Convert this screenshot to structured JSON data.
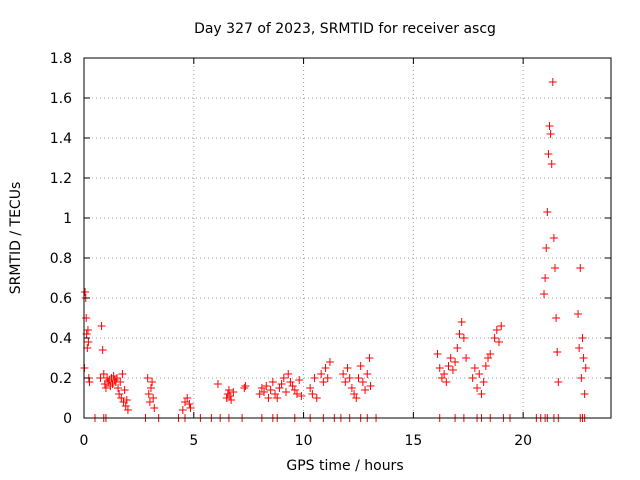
{
  "chart_data": {
    "type": "scatter",
    "title": "Day 327 of 2023, SRMTID for receiver ascg",
    "xlabel": "GPS time / hours",
    "ylabel": "SRMTID / TECUs",
    "xlim": [
      0,
      24
    ],
    "ylim": [
      0,
      1.8
    ],
    "x_ticks": [
      0,
      5,
      10,
      15,
      20
    ],
    "y_ticks": [
      0,
      0.2,
      0.4,
      0.6,
      0.8,
      1.0,
      1.2,
      1.4,
      1.6,
      1.8
    ],
    "x_tick_labels": [
      "0",
      "5",
      "10",
      "15",
      "20"
    ],
    "y_tick_labels": [
      "0",
      "0.2",
      "0.4",
      "0.6",
      "0.8",
      "1",
      "1.2",
      "1.4",
      "1.6",
      "1.8"
    ],
    "grid": true,
    "marker": "+",
    "color": "#ff0000",
    "series": [
      {
        "name": "SRMTID",
        "x": [
          0.02,
          0.05,
          0.08,
          0.1,
          0.12,
          0.15,
          0.18,
          0.2,
          0.22,
          0.25,
          0.75,
          0.8,
          0.85,
          0.9,
          0.95,
          1.0,
          1.05,
          1.1,
          1.15,
          1.2,
          1.25,
          1.3,
          1.35,
          1.4,
          1.45,
          1.5,
          1.55,
          1.6,
          1.65,
          1.7,
          1.75,
          1.8,
          1.85,
          1.9,
          1.95,
          2.0,
          2.9,
          2.95,
          3.0,
          3.05,
          3.1,
          3.15,
          3.2,
          4.5,
          4.6,
          4.7,
          4.8,
          4.85,
          6.1,
          6.5,
          6.55,
          6.6,
          6.65,
          6.7,
          6.8,
          7.3,
          7.35,
          8.0,
          8.1,
          8.2,
          8.3,
          8.4,
          8.5,
          8.6,
          8.7,
          8.8,
          8.9,
          9.0,
          9.1,
          9.2,
          9.3,
          9.4,
          9.5,
          9.6,
          9.7,
          9.8,
          9.9,
          10.3,
          10.4,
          10.5,
          10.6,
          10.8,
          10.9,
          11.0,
          11.1,
          11.2,
          11.8,
          11.9,
          12.0,
          12.1,
          12.2,
          12.3,
          12.4,
          12.5,
          12.6,
          12.7,
          12.8,
          12.9,
          13.0,
          13.05,
          16.1,
          16.2,
          16.3,
          16.4,
          16.5,
          16.6,
          16.7,
          16.8,
          16.9,
          17.0,
          17.1,
          17.2,
          17.3,
          17.4,
          17.7,
          17.8,
          17.9,
          18.0,
          18.1,
          18.2,
          18.3,
          18.4,
          18.5,
          18.7,
          18.8,
          18.9,
          19.0,
          20.95,
          21.0,
          21.05,
          21.1,
          21.15,
          21.2,
          21.25,
          21.3,
          21.35,
          21.4,
          21.45,
          21.5,
          21.55,
          21.6,
          22.5,
          22.55,
          22.6,
          22.65,
          22.7,
          22.75,
          22.8,
          22.85
        ],
        "y": [
          0.25,
          0.63,
          0.6,
          0.5,
          0.42,
          0.35,
          0.44,
          0.38,
          0.2,
          0.18,
          0.2,
          0.46,
          0.34,
          0.22,
          0.17,
          0.15,
          0.2,
          0.18,
          0.19,
          0.16,
          0.2,
          0.17,
          0.21,
          0.19,
          0.18,
          0.2,
          0.15,
          0.12,
          0.18,
          0.1,
          0.22,
          0.08,
          0.14,
          0.06,
          0.09,
          0.04,
          0.2,
          0.12,
          0.08,
          0.15,
          0.18,
          0.1,
          0.05,
          0.04,
          0.08,
          0.1,
          0.07,
          0.05,
          0.17,
          0.1,
          0.12,
          0.14,
          0.11,
          0.09,
          0.13,
          0.15,
          0.16,
          0.12,
          0.15,
          0.13,
          0.16,
          0.1,
          0.14,
          0.18,
          0.12,
          0.1,
          0.15,
          0.17,
          0.2,
          0.13,
          0.22,
          0.18,
          0.16,
          0.14,
          0.12,
          0.19,
          0.11,
          0.15,
          0.12,
          0.2,
          0.1,
          0.22,
          0.18,
          0.25,
          0.2,
          0.28,
          0.22,
          0.18,
          0.25,
          0.2,
          0.15,
          0.12,
          0.1,
          0.2,
          0.26,
          0.18,
          0.14,
          0.22,
          0.3,
          0.16,
          0.32,
          0.25,
          0.2,
          0.22,
          0.18,
          0.26,
          0.3,
          0.24,
          0.28,
          0.35,
          0.42,
          0.48,
          0.4,
          0.3,
          0.2,
          0.25,
          0.15,
          0.22,
          0.12,
          0.18,
          0.26,
          0.3,
          0.32,
          0.4,
          0.44,
          0.38,
          0.46,
          0.62,
          0.7,
          0.85,
          1.03,
          1.32,
          1.46,
          1.42,
          1.27,
          1.68,
          0.9,
          0.75,
          0.5,
          0.33,
          0.18,
          0.52,
          0.35,
          0.75,
          0.2,
          0.4,
          0.3,
          0.12,
          0.25
        ],
        "x_zero": [
          0.5,
          0.9,
          1.0,
          2.8,
          3.4,
          4.3,
          4.6,
          5.3,
          5.8,
          6.2,
          6.6,
          7.2,
          8.1,
          8.6,
          8.8,
          9.6,
          10.3,
          10.9,
          11.4,
          11.7,
          12.1,
          12.6,
          12.9,
          13.3,
          16.2,
          16.9,
          17.3,
          17.9,
          18.1,
          18.5,
          19.1,
          19.4,
          20.6,
          20.8,
          21.0,
          21.1,
          21.4,
          21.6,
          22.6,
          22.7,
          22.8
        ]
      }
    ]
  }
}
